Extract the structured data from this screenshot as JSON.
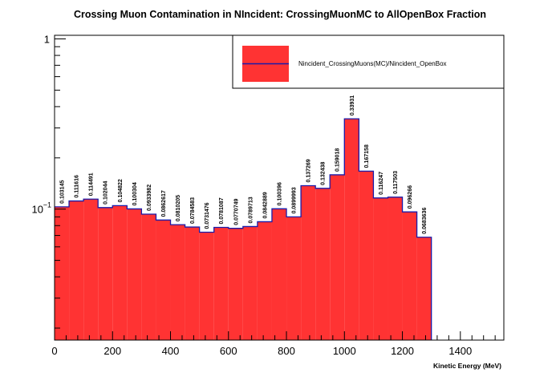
{
  "chart_data": {
    "type": "histogram",
    "title": "Crossing Muon Contamination in NIncident: CrossingMuonMC to AllOpenBox Fraction",
    "xlabel": "Kinetic Energy (MeV)",
    "ylabel": "",
    "xlim": [
      0,
      1550
    ],
    "ylim": [
      0.017,
      1.05
    ],
    "yscale": "log",
    "grid": false,
    "legend_position": "top-right",
    "bin_width": 50,
    "bin_edges_start": 0,
    "x_ticks": [
      "0",
      "200",
      "400",
      "600",
      "800",
      "1000",
      "1200",
      "1400"
    ],
    "y_ticks": [
      "1",
      "10^-1"
    ],
    "series": [
      {
        "name": "Nincident_CrossingMuons(MC)/Nincident_OpenBox",
        "color_fill": "#ff3333",
        "color_line": "#1a1aa8",
        "values": [
          0.103145,
          0.111616,
          0.114491,
          0.102044,
          0.104822,
          0.100304,
          0.0933982,
          0.0862617,
          0.0810205,
          0.0784583,
          0.0731476,
          0.0781087,
          0.0770749,
          0.0789713,
          0.0842889,
          0.100396,
          0.0899993,
          0.137269,
          0.132438,
          0.159018,
          0.33931,
          0.167158,
          0.116247,
          0.117503,
          0.096266,
          0.0683636
        ],
        "labels": [
          "0.103145",
          "0.111616",
          "0.114491",
          "0.102044",
          "0.104822",
          "0.100304",
          "0.0933982",
          "0.0862617",
          "0.0810205",
          "0.0784583",
          "0.0731476",
          "0.0781087",
          "0.0770749",
          "0.0789713",
          "0.0842889",
          "0.100396",
          "0.0899993",
          "0.137269",
          "0.132438",
          "0.159018",
          "0.33931",
          "0.167158",
          "0.116247",
          "0.117503",
          "0.096266",
          "0.0683636"
        ]
      }
    ]
  },
  "colors": {
    "fill": "#ff3333",
    "outline": "#1a1aa8",
    "frame": "#000000",
    "background": "#ffffff"
  }
}
